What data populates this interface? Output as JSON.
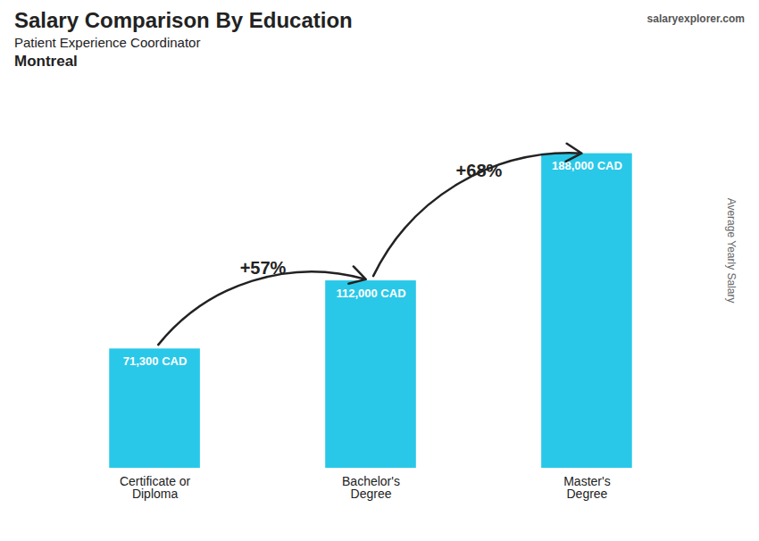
{
  "chart_data": {
    "type": "bar",
    "title": "Salary Comparison By Education",
    "subtitle": [
      "Patient Experience Coordinator",
      "Montreal"
    ],
    "y_label": "Average Yearly Salary",
    "categories": [
      "Certificate or\nDiploma",
      "Bachelor's\nDegree",
      "Master's\nDegree"
    ],
    "values": [
      71300,
      112000,
      188000
    ],
    "value_labels": [
      "71,300 CAD",
      "112,000 CAD",
      "188,000 CAD"
    ],
    "data_labels": true,
    "color": "#29C8E8",
    "ylim": [
      0,
      197400
    ],
    "yticks": [],
    "tick_labels": "x",
    "grid": false,
    "annotations": [
      {
        "text": "+57%",
        "from": "Certificate or\nDiploma",
        "to": "Bachelor's\nDegree"
      },
      {
        "text": "+68%",
        "from": "Bachelor's\nDegree",
        "to": "Master's\nDegree"
      },
      {
        "text": "salaryexplorer.com"
      }
    ]
  }
}
